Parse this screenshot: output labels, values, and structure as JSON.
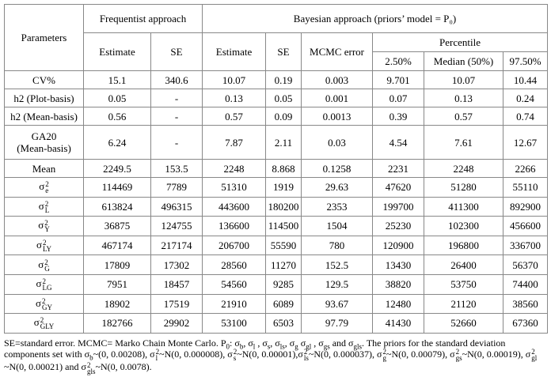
{
  "header": {
    "parameters": "Parameters",
    "frequentist": "Frequentist approach",
    "bayesian": "Bayesian approach (priors’ model = P₀)",
    "estimate_f": "Estimate",
    "se_f": "SE",
    "estimate_b": "Estimate",
    "se_b": "SE",
    "mcmc": "MCMC error",
    "percentile": "Percentile",
    "p25": "2.50%",
    "median": "Median (50%)",
    "p975": "97.50%"
  },
  "table": {
    "rows": [
      {
        "label": [
          {
            "text": "CV%"
          }
        ],
        "cells": [
          "15.1",
          "340.6",
          "10.07",
          "0.19",
          "0.003",
          "9.701",
          "10.07",
          "10.44"
        ]
      },
      {
        "label": [
          {
            "text": "h2 (Plot-basis)"
          }
        ],
        "cells": [
          "0.05",
          "-",
          "0.13",
          "0.05",
          "0.001",
          "0.07",
          "0.13",
          "0.24"
        ]
      },
      {
        "label": [
          {
            "text": "h2 (Mean-basis)"
          }
        ],
        "cells": [
          "0.56",
          "-",
          "0.57",
          "0.09",
          "0.0013",
          "0.39",
          "0.57",
          "0.74"
        ]
      },
      {
        "label": [
          {
            "text": "GA20\n(Mean-basis)"
          }
        ],
        "cells": [
          "6.24",
          "-",
          "7.87",
          "2.11",
          "0.03",
          "4.54",
          "7.61",
          "12.67"
        ]
      },
      {
        "label": [
          {
            "text": "Mean"
          }
        ],
        "cells": [
          "2249.5",
          "153.5",
          "2248",
          "8.868",
          "0.1258",
          "2231",
          "2248",
          "2266"
        ]
      },
      {
        "label": [
          {
            "text": "σ"
          },
          {
            "sup": "2",
            "sub": "e"
          }
        ],
        "cells": [
          "114469",
          "7789",
          "51310",
          "1919",
          "29.63",
          "47620",
          "51280",
          "55110"
        ]
      },
      {
        "label": [
          {
            "text": "σ"
          },
          {
            "sup": "2",
            "sub": "L"
          }
        ],
        "cells": [
          "613824",
          "496315",
          "443600",
          "180200",
          "2353",
          "199700",
          "411300",
          "892900"
        ]
      },
      {
        "label": [
          {
            "text": "σ"
          },
          {
            "sup": "2",
            "sub": "Y"
          }
        ],
        "cells": [
          "36875",
          "124755",
          "136600",
          "114500",
          "1504",
          "25230",
          "102300",
          "456600"
        ]
      },
      {
        "label": [
          {
            "text": "σ"
          },
          {
            "sup": "2",
            "sub": "LY"
          }
        ],
        "cells": [
          "467174",
          "217174",
          "206700",
          "55590",
          "780",
          "120900",
          "196800",
          "336700"
        ]
      },
      {
        "label": [
          {
            "text": "σ"
          },
          {
            "sup": "2",
            "sub": "G"
          }
        ],
        "cells": [
          "17809",
          "17302",
          "28560",
          "11270",
          "152.5",
          "13430",
          "26400",
          "56370"
        ]
      },
      {
        "label": [
          {
            "text": "σ"
          },
          {
            "sup": "2",
            "sub": "LG"
          }
        ],
        "cells": [
          "7951",
          "18457",
          "54560",
          "9285",
          "129.5",
          "38820",
          "53750",
          "74400"
        ]
      },
      {
        "label": [
          {
            "text": "σ"
          },
          {
            "sup": "2",
            "sub": "GY"
          }
        ],
        "cells": [
          "18902",
          "17519",
          "21910",
          "6089",
          "93.67",
          "12480",
          "21120",
          "38560"
        ]
      },
      {
        "label": [
          {
            "text": "σ"
          },
          {
            "sup": "2",
            "sub": "GLY"
          }
        ],
        "cells": [
          "182766",
          "29902",
          "53100",
          "6503",
          "97.79",
          "41430",
          "52660",
          "67360"
        ]
      }
    ]
  },
  "footnote": [
    {
      "text": "SE=standard error. MCMC= Marko Chain Monte Carlo. P"
    },
    {
      "sub": "0"
    },
    {
      "text": ": σ"
    },
    {
      "sub": "b"
    },
    {
      "text": ", σ"
    },
    {
      "sub": "l"
    },
    {
      "text": " , σ"
    },
    {
      "sub": "s"
    },
    {
      "text": ", σ"
    },
    {
      "sub": "ls"
    },
    {
      "text": ", σ"
    },
    {
      "sub": "g"
    },
    {
      "text": " σ"
    },
    {
      "sub": "gl"
    },
    {
      "text": " , σ"
    },
    {
      "sub": "gs"
    },
    {
      "text": " and σ"
    },
    {
      "sub": "gls"
    },
    {
      "text": ". The priors for the standard deviation components set with σ"
    },
    {
      "sub": "b"
    },
    {
      "text": "~(0, 0.00208), σ"
    },
    {
      "sup": "2",
      "sub": "l"
    },
    {
      "text": "~N(0, 0.000008), σ"
    },
    {
      "sup": "2",
      "sub": "s"
    },
    {
      "text": "~N(0, 0.00001),σ"
    },
    {
      "sup": "2",
      "sub": "ls"
    },
    {
      "text": "~N(0, 0.000037), σ"
    },
    {
      "sup": "2",
      "sub": "g"
    },
    {
      "text": "~N(0, 0.00079), σ"
    },
    {
      "sup": "2",
      "sub": "gs"
    },
    {
      "text": "~N(0, 0.00019), σ"
    },
    {
      "sup": "2",
      "sub": "gl"
    },
    {
      "text": "~N(0, 0.00021) and σ"
    },
    {
      "sup": "2",
      "sub": "gls"
    },
    {
      "text": "~N(0, 0.0078)."
    }
  ]
}
